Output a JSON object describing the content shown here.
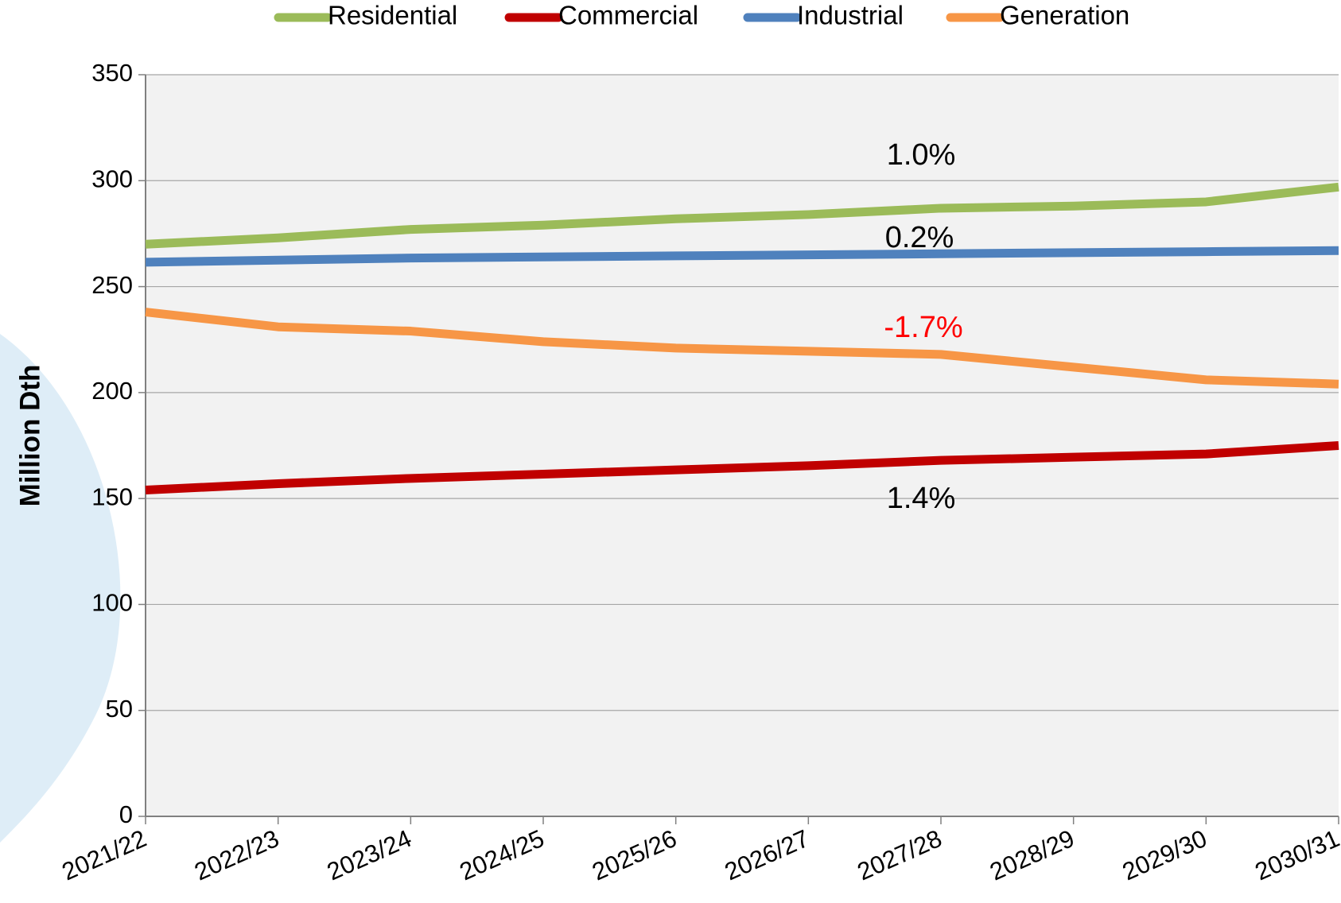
{
  "chart_data": {
    "type": "line",
    "ylabel": "Million Dth",
    "categories": [
      "2021/22",
      "2022/23",
      "2023/24",
      "2024/25",
      "2025/26",
      "2026/27",
      "2027/28",
      "2028/29",
      "2029/30",
      "2030/31"
    ],
    "series": [
      {
        "name": "Residential",
        "color": "#9bbb59",
        "values": [
          270,
          273,
          277,
          279,
          282,
          284,
          287,
          288,
          290,
          297
        ]
      },
      {
        "name": "Commercial",
        "color": "#c00000",
        "values": [
          154,
          157,
          159.5,
          161.5,
          163.5,
          165.5,
          168,
          169.5,
          171,
          175
        ]
      },
      {
        "name": "Industrial",
        "color": "#4f81bd",
        "values": [
          261.5,
          262.5,
          263.5,
          264,
          264.5,
          265,
          265.5,
          266,
          266.5,
          267
        ]
      },
      {
        "name": "Generation",
        "color": "#f79646",
        "values": [
          238,
          231,
          229,
          224,
          221,
          219.5,
          218,
          212,
          206,
          204
        ]
      }
    ],
    "annotations": [
      {
        "text": "1.0%",
        "color": "#000000"
      },
      {
        "text": "0.2%",
        "color": "#000000"
      },
      {
        "text": "-1.7%",
        "color": "#ff0000"
      },
      {
        "text": "1.4%",
        "color": "#000000"
      }
    ],
    "ylim": [
      0,
      350
    ],
    "yticks": [
      0,
      50,
      100,
      150,
      200,
      250,
      300,
      350
    ],
    "grid": true,
    "legend": "top"
  }
}
